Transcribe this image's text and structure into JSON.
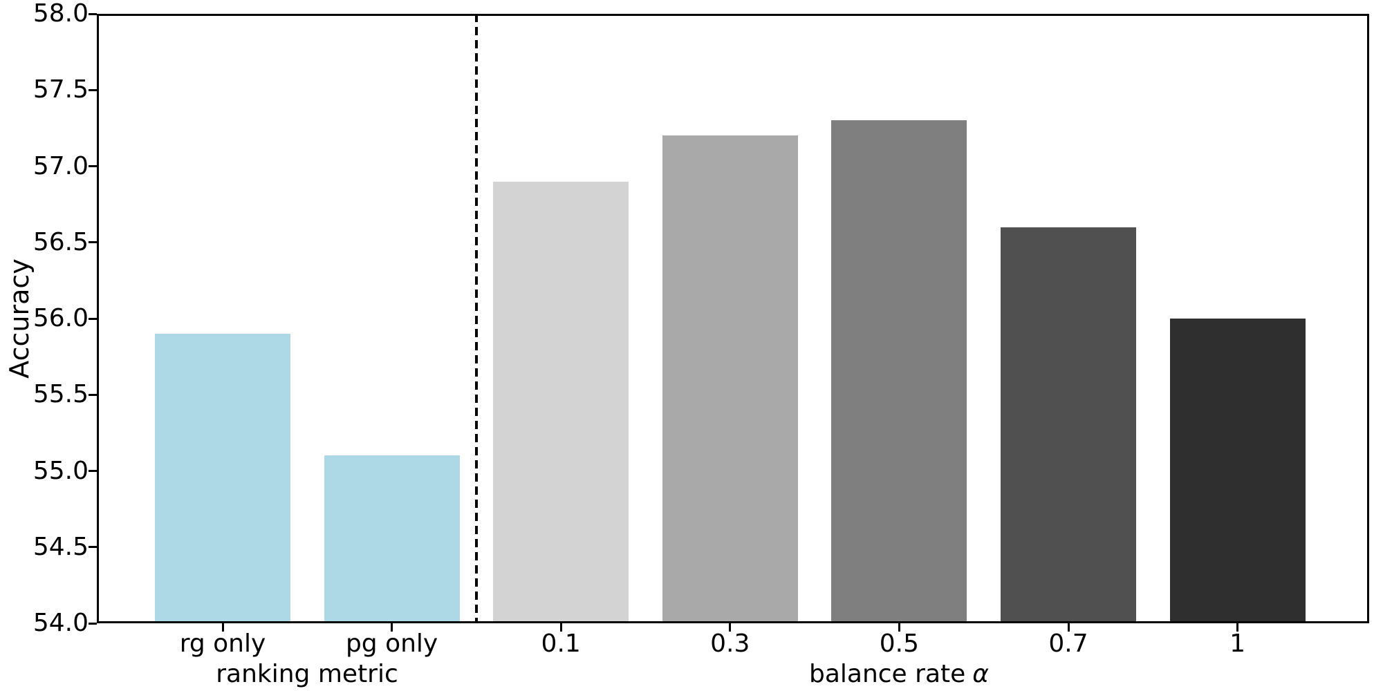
{
  "chart_data": {
    "type": "bar",
    "title": "",
    "ylabel": "Accuracy",
    "ylim": [
      54.0,
      58.0
    ],
    "ytick_labels": [
      "54.0",
      "54.5",
      "55.0",
      "55.5",
      "56.0",
      "56.5",
      "57.0",
      "57.5",
      "58.0"
    ],
    "grid": false,
    "legend": null,
    "separator": {
      "type": "vertical-dashed-line",
      "color": "#000000",
      "between_categories": [
        "pg only",
        "0.1"
      ]
    },
    "xlabel_groups": [
      {
        "label": "ranking metric",
        "symbol": ""
      },
      {
        "label": "balance rate",
        "symbol": "α"
      }
    ],
    "groups": [
      {
        "name": "ranking metric",
        "categories": [
          "rg only",
          "pg only"
        ],
        "values": [
          55.9,
          55.1
        ],
        "colors": [
          "#add8e6",
          "#add8e6"
        ]
      },
      {
        "name": "balance rate α",
        "categories": [
          "0.1",
          "0.3",
          "0.5",
          "0.7",
          "1"
        ],
        "values": [
          56.9,
          57.2,
          57.3,
          56.6,
          56.0
        ],
        "colors": [
          "#d3d3d3",
          "#a9a9a9",
          "#7f7f7f",
          "#505050",
          "#2f2f2f"
        ]
      }
    ]
  }
}
